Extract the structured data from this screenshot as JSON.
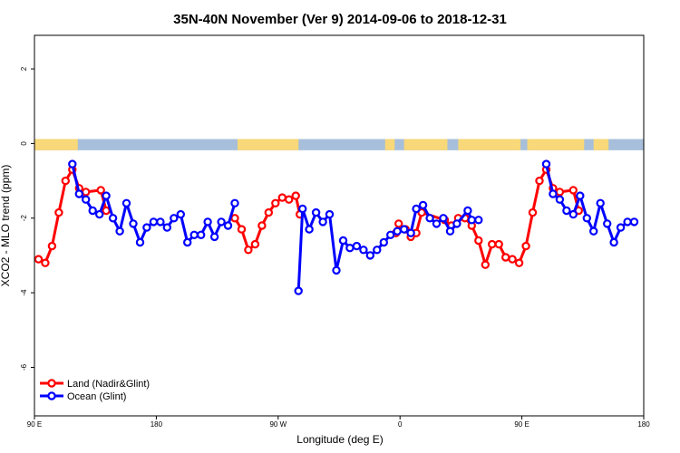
{
  "chart_data": {
    "type": "line",
    "title": "35N-40N November (Ver 9)   2014-09-06 to 2018-12-31",
    "xlabel": "Longitude (deg E)",
    "ylabel": "XCO2 - MLO trend (ppm)",
    "xlim": [
      90,
      540
    ],
    "ylim": [
      -7.3,
      2.9
    ],
    "x_ticks": [
      {
        "value": 90,
        "label": "90 E"
      },
      {
        "value": 180,
        "label": "180"
      },
      {
        "value": 270,
        "label": "90 W"
      },
      {
        "value": 360,
        "label": "0"
      },
      {
        "value": 450,
        "label": "90 E"
      },
      {
        "value": 540,
        "label": "180"
      }
    ],
    "y_ticks": [
      {
        "value": 2,
        "label": "2"
      },
      {
        "value": 0,
        "label": "0"
      },
      {
        "value": -2,
        "label": "-2"
      },
      {
        "value": -4,
        "label": "-4"
      },
      {
        "value": -6,
        "label": "-6"
      }
    ],
    "grid": false,
    "legend_position": "bottom-left",
    "land_mask_color": "#f8d878",
    "ocean_mask_color": "#a7bfdb",
    "land_mask_segments": [
      [
        90,
        122
      ],
      [
        240,
        285
      ],
      [
        349,
        356
      ],
      [
        363,
        395
      ],
      [
        403,
        449
      ],
      [
        454,
        496
      ],
      [
        503,
        514
      ]
    ],
    "series": [
      {
        "name": "Land (Nadir&Glint)",
        "color": "#ff0000",
        "points": [
          [
            93,
            -3.1
          ],
          [
            98,
            -3.2
          ],
          [
            103,
            -2.75
          ],
          [
            108,
            -1.85
          ],
          [
            113,
            -1.0
          ],
          [
            118,
            -0.7
          ],
          [
            123,
            -1.2
          ],
          [
            128,
            -1.3
          ],
          [
            139,
            -1.25
          ],
          [
            143,
            -1.8
          ],
          [
            238,
            -2.0
          ],
          [
            243,
            -2.3
          ],
          [
            248,
            -2.85
          ],
          [
            253,
            -2.7
          ],
          [
            258,
            -2.2
          ],
          [
            263,
            -1.85
          ],
          [
            268,
            -1.6
          ],
          [
            273,
            -1.45
          ],
          [
            278,
            -1.5
          ],
          [
            283,
            -1.4
          ],
          [
            286,
            -1.9
          ],
          [
            357,
            -2.4
          ],
          [
            359,
            -2.15
          ],
          [
            364,
            -2.3
          ],
          [
            368,
            -2.5
          ],
          [
            372,
            -2.4
          ],
          [
            376,
            -1.85
          ],
          [
            393,
            -2.05
          ],
          [
            398,
            -2.2
          ],
          [
            403,
            -2.0
          ],
          [
            408,
            -2.0
          ],
          [
            413,
            -2.2
          ],
          [
            418,
            -2.6
          ],
          [
            423,
            -3.25
          ],
          [
            428,
            -2.7
          ],
          [
            433,
            -2.7
          ],
          [
            438,
            -3.05
          ],
          [
            443,
            -3.1
          ],
          [
            448,
            -3.2
          ],
          [
            453,
            -2.75
          ],
          [
            458,
            -1.85
          ],
          [
            463,
            -1.0
          ],
          [
            468,
            -0.7
          ],
          [
            473,
            -1.2
          ],
          [
            478,
            -1.3
          ],
          [
            488,
            -1.25
          ],
          [
            492,
            -1.8
          ]
        ]
      },
      {
        "name": "Ocean (Glint)",
        "color": "#0000ff",
        "points": [
          [
            118,
            -0.55
          ],
          [
            123,
            -1.35
          ],
          [
            128,
            -1.5
          ],
          [
            133,
            -1.8
          ],
          [
            138,
            -1.9
          ],
          [
            143,
            -1.4
          ],
          [
            148,
            -2.0
          ],
          [
            153,
            -2.35
          ],
          [
            158,
            -1.6
          ],
          [
            163,
            -2.15
          ],
          [
            168,
            -2.65
          ],
          [
            173,
            -2.25
          ],
          [
            178,
            -2.1
          ],
          [
            183,
            -2.1
          ],
          [
            188,
            -2.25
          ],
          [
            193,
            -2.0
          ],
          [
            198,
            -1.9
          ],
          [
            203,
            -2.65
          ],
          [
            208,
            -2.45
          ],
          [
            213,
            -2.45
          ],
          [
            218,
            -2.1
          ],
          [
            223,
            -2.5
          ],
          [
            228,
            -2.1
          ],
          [
            233,
            -2.2
          ],
          [
            238,
            -1.6
          ],
          [
            285,
            -3.95
          ],
          [
            288,
            -1.75
          ],
          [
            293,
            -2.3
          ],
          [
            298,
            -1.85
          ],
          [
            303,
            -2.1
          ],
          [
            308,
            -1.9
          ],
          [
            313,
            -3.4
          ],
          [
            318,
            -2.6
          ],
          [
            323,
            -2.8
          ],
          [
            328,
            -2.75
          ],
          [
            333,
            -2.85
          ],
          [
            338,
            -3.0
          ],
          [
            343,
            -2.85
          ],
          [
            348,
            -2.65
          ],
          [
            353,
            -2.45
          ],
          [
            358,
            -2.35
          ],
          [
            363,
            -2.3
          ],
          [
            368,
            -2.4
          ],
          [
            372,
            -1.75
          ],
          [
            377,
            -1.65
          ],
          [
            382,
            -2.0
          ],
          [
            387,
            -2.15
          ],
          [
            392,
            -2.0
          ],
          [
            397,
            -2.35
          ],
          [
            402,
            -2.15
          ],
          [
            410,
            -1.8
          ],
          [
            413,
            -2.05
          ],
          [
            418,
            -2.05
          ],
          [
            468,
            -0.55
          ],
          [
            473,
            -1.35
          ],
          [
            478,
            -1.5
          ],
          [
            483,
            -1.8
          ],
          [
            488,
            -1.9
          ],
          [
            493,
            -1.4
          ],
          [
            498,
            -2.0
          ],
          [
            503,
            -2.35
          ],
          [
            508,
            -1.6
          ],
          [
            513,
            -2.15
          ],
          [
            518,
            -2.65
          ],
          [
            523,
            -2.25
          ],
          [
            528,
            -2.1
          ],
          [
            533,
            -2.1
          ]
        ]
      }
    ]
  }
}
